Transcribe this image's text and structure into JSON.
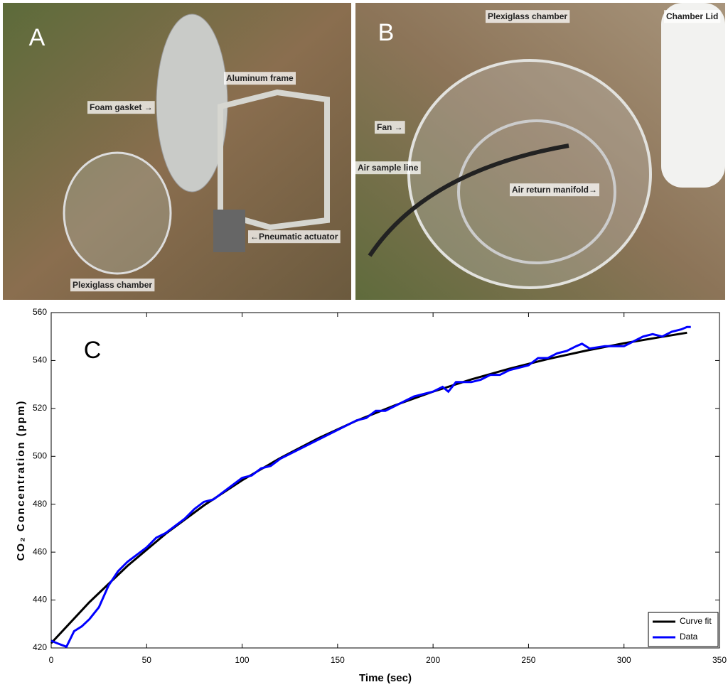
{
  "photos": [
    {
      "panel": "A",
      "labels": [
        "Aluminum frame",
        "Foam gasket →",
        "←Pneumatic actuator",
        "Plexiglass chamber"
      ]
    },
    {
      "panel": "B",
      "labels": [
        "Plexiglass chamber",
        "Chamber Lid",
        "Fan →",
        "Air sample line",
        "Air return manifold→"
      ]
    }
  ],
  "chart_data": {
    "type": "line",
    "panel": "C",
    "x_label": "Time (sec)",
    "y_label": "CO₂ Concentration (ppm)",
    "xlim": [
      0,
      350
    ],
    "xticks": [
      0,
      50,
      100,
      150,
      200,
      250,
      300,
      350
    ],
    "ylim": [
      420,
      560
    ],
    "yticks": [
      420,
      440,
      460,
      480,
      500,
      520,
      540,
      560
    ],
    "legend": "lower right",
    "series": [
      {
        "name": "Curve fit",
        "color": "#000000",
        "x": [
          0,
          20,
          40,
          60,
          80,
          100,
          120,
          140,
          160,
          180,
          200,
          220,
          240,
          260,
          280,
          300,
          320,
          333
        ],
        "values": [
          422,
          439.1,
          454.3,
          467.7,
          479.5,
          490,
          499.3,
          507.6,
          514.9,
          521.3,
          527,
          532.1,
          536.6,
          540.6,
          544.1,
          547.2,
          549.9,
          551.6
        ]
      },
      {
        "name": "Data",
        "color": "#0000ff",
        "x": [
          0,
          3,
          8,
          12,
          16,
          20,
          25,
          30,
          35,
          40,
          45,
          50,
          55,
          60,
          65,
          70,
          75,
          80,
          85,
          90,
          95,
          100,
          105,
          110,
          115,
          120,
          125,
          130,
          135,
          140,
          145,
          150,
          155,
          160,
          165,
          170,
          175,
          180,
          185,
          190,
          195,
          200,
          205,
          208,
          212,
          220,
          225,
          230,
          235,
          240,
          245,
          250,
          255,
          260,
          265,
          270,
          275,
          278,
          282,
          290,
          295,
          300,
          305,
          310,
          315,
          320,
          325,
          330,
          333,
          335
        ],
        "values": [
          423,
          422,
          420.5,
          427,
          429,
          432,
          437,
          446,
          452,
          456,
          459,
          462,
          466,
          468,
          471,
          474,
          478,
          481,
          482,
          485,
          488,
          491,
          492,
          495,
          496,
          499,
          501,
          503,
          505,
          507,
          509,
          511,
          513,
          515,
          516,
          519,
          519,
          521,
          523,
          525,
          526,
          527,
          529,
          527,
          531,
          531,
          532,
          534,
          534,
          536,
          537,
          538,
          541,
          541,
          543,
          544,
          546,
          547,
          545,
          546,
          546,
          546,
          548,
          550,
          551,
          550,
          552,
          553,
          554,
          554
        ]
      }
    ]
  }
}
